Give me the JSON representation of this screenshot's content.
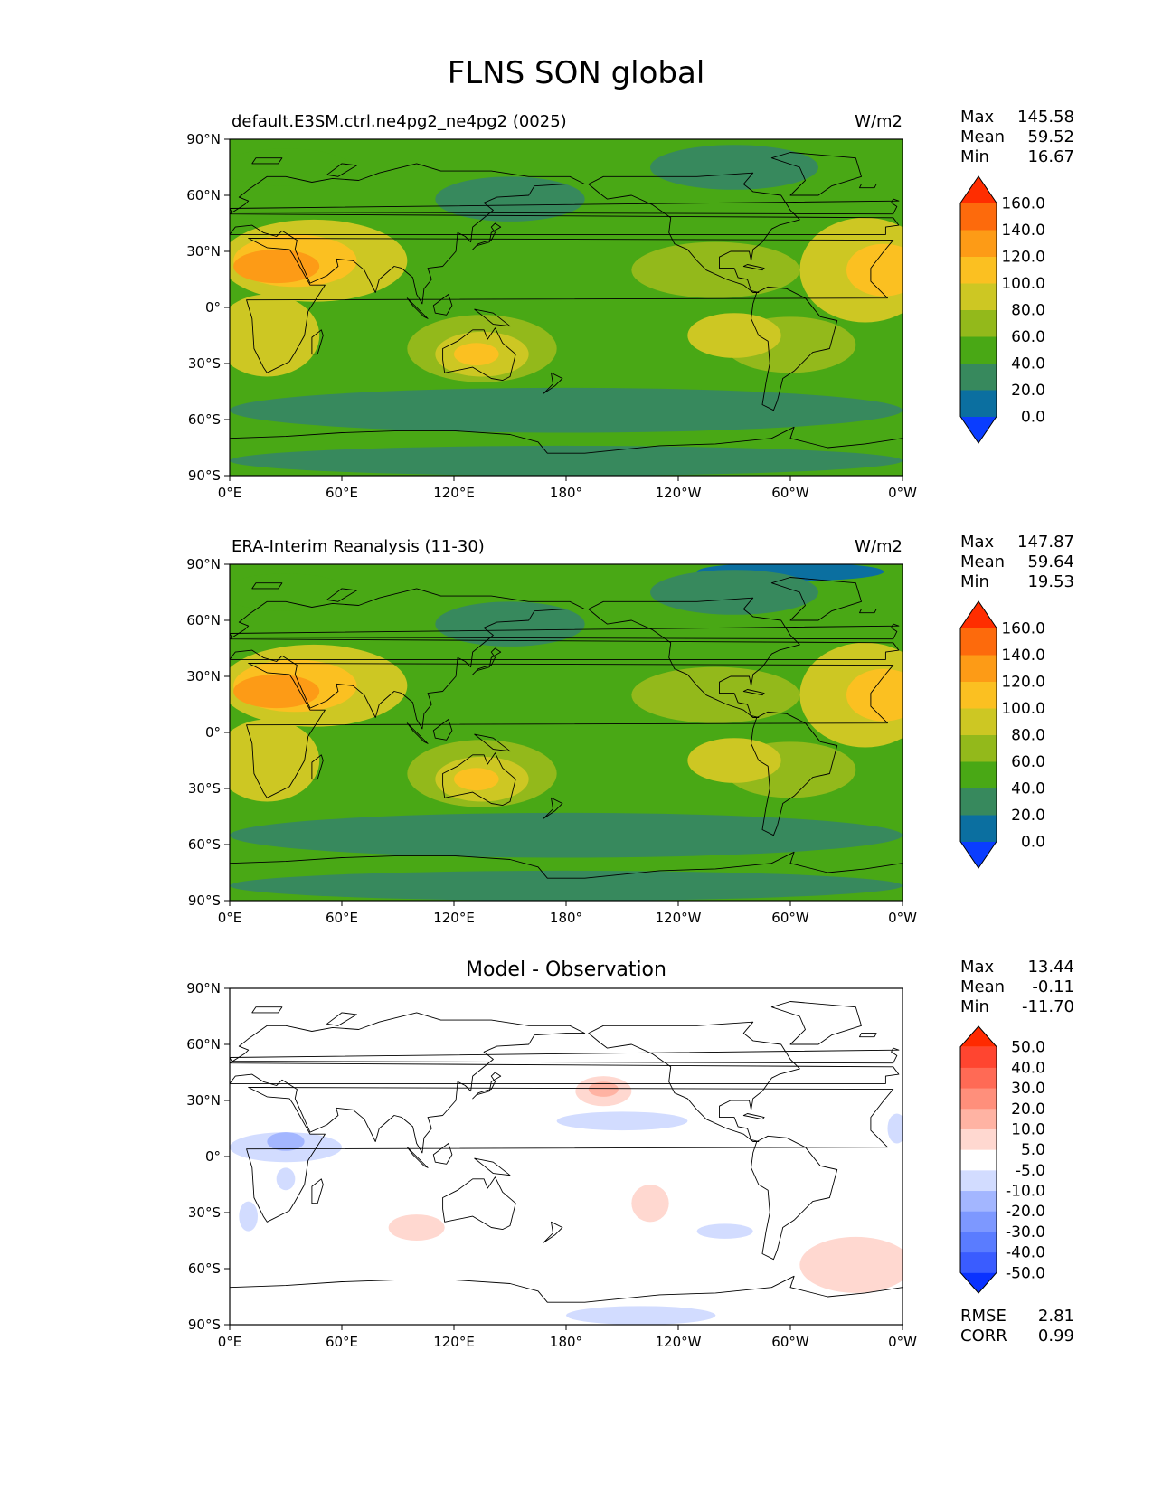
{
  "title": "FLNS SON global",
  "panels": [
    {
      "left_title": "default.E3SM.ctrl.ne4pg2_ne4pg2 (0025)",
      "center_title": "",
      "units": "W/m2",
      "stats": [
        {
          "label": "Max",
          "value": "145.58"
        },
        {
          "label": "Mean",
          "value": "59.52"
        },
        {
          "label": "Min",
          "value": "16.67"
        }
      ]
    },
    {
      "left_title": "ERA-Interim Reanalysis (11-30)",
      "center_title": "",
      "units": "W/m2",
      "stats": [
        {
          "label": "Max",
          "value": "147.87"
        },
        {
          "label": "Mean",
          "value": "59.64"
        },
        {
          "label": "Min",
          "value": "19.53"
        }
      ]
    },
    {
      "left_title": "",
      "center_title": "Model - Observation",
      "units": "",
      "stats": [
        {
          "label": "Max",
          "value": "13.44"
        },
        {
          "label": "Mean",
          "value": "-0.11"
        },
        {
          "label": "Min",
          "value": "-11.70"
        }
      ],
      "extra_stats": [
        {
          "label": "RMSE",
          "value": "2.81"
        },
        {
          "label": "CORR",
          "value": "0.99"
        }
      ]
    }
  ],
  "chart_data": [
    {
      "type": "heatmap",
      "projection": "cylindrical",
      "x_ticks": [
        "0°E",
        "60°E",
        "120°E",
        "180°",
        "120°W",
        "60°W",
        "0°W"
      ],
      "y_ticks": [
        "90°N",
        "60°N",
        "30°N",
        "0°",
        "30°S",
        "60°S",
        "90°S"
      ],
      "xlim": [
        0,
        360
      ],
      "ylim": [
        -90,
        90
      ],
      "colorbar": {
        "levels": [
          "0.0",
          "20.0",
          "40.0",
          "60.0",
          "80.0",
          "100.0",
          "120.0",
          "140.0",
          "160.0"
        ],
        "colors": [
          "#0a3dff",
          "#0b6fa0",
          "#37895d",
          "#49a815",
          "#93b91b",
          "#cdc723",
          "#fbc021",
          "#fd9b16",
          "#fd6a0c",
          "#ff2d00"
        ],
        "extend": "both"
      },
      "field": {
        "background_band": 50,
        "regions": [
          {
            "lon": 30,
            "lat": 75,
            "rx": 35,
            "ry": 10,
            "value": 50
          },
          {
            "lon": 150,
            "lat": 58,
            "rx": 40,
            "ry": 12,
            "value": 30
          },
          {
            "lon": 270,
            "lat": 75,
            "rx": 45,
            "ry": 12,
            "value": 30
          },
          {
            "lon": 45,
            "lat": 25,
            "rx": 50,
            "ry": 22,
            "value": 90
          },
          {
            "lon": 35,
            "lat": 25,
            "rx": 33,
            "ry": 14,
            "value": 110
          },
          {
            "lon": 25,
            "lat": 22,
            "rx": 23,
            "ry": 9,
            "value": 130
          },
          {
            "lon": 20,
            "lat": -15,
            "rx": 28,
            "ry": 22,
            "value": 90
          },
          {
            "lon": 135,
            "lat": -22,
            "rx": 40,
            "ry": 18,
            "value": 70
          },
          {
            "lon": 135,
            "lat": -25,
            "rx": 25,
            "ry": 12,
            "value": 90
          },
          {
            "lon": 132,
            "lat": -25,
            "rx": 12,
            "ry": 6,
            "value": 110
          },
          {
            "lon": 260,
            "lat": 20,
            "rx": 45,
            "ry": 15,
            "value": 70
          },
          {
            "lon": 340,
            "lat": 20,
            "rx": 35,
            "ry": 28,
            "value": 90
          },
          {
            "lon": 350,
            "lat": 20,
            "rx": 20,
            "ry": 14,
            "value": 110
          },
          {
            "lon": 300,
            "lat": -20,
            "rx": 35,
            "ry": 15,
            "value": 70
          },
          {
            "lon": 270,
            "lat": -15,
            "rx": 25,
            "ry": 12,
            "value": 90
          },
          {
            "lon": 180,
            "lat": -55,
            "rx": 180,
            "ry": 12,
            "value": 30
          },
          {
            "lon": 180,
            "lat": -82,
            "rx": 180,
            "ry": 8,
            "value": 30
          }
        ]
      }
    },
    {
      "type": "heatmap",
      "projection": "cylindrical",
      "x_ticks": [
        "0°E",
        "60°E",
        "120°E",
        "180°",
        "120°W",
        "60°W",
        "0°W"
      ],
      "y_ticks": [
        "90°N",
        "60°N",
        "30°N",
        "0°",
        "30°S",
        "60°S",
        "90°S"
      ],
      "xlim": [
        0,
        360
      ],
      "ylim": [
        -90,
        90
      ],
      "colorbar": {
        "levels": [
          "0.0",
          "20.0",
          "40.0",
          "60.0",
          "80.0",
          "100.0",
          "120.0",
          "140.0",
          "160.0"
        ],
        "colors": [
          "#0a3dff",
          "#0b6fa0",
          "#37895d",
          "#49a815",
          "#93b91b",
          "#cdc723",
          "#fbc021",
          "#fd9b16",
          "#fd6a0c",
          "#ff2d00"
        ],
        "extend": "both"
      },
      "field": {
        "background_band": 50,
        "regions": [
          {
            "lon": 300,
            "lat": 86,
            "rx": 50,
            "ry": 5,
            "value": 10
          },
          {
            "lon": 30,
            "lat": 75,
            "rx": 35,
            "ry": 10,
            "value": 50
          },
          {
            "lon": 150,
            "lat": 58,
            "rx": 40,
            "ry": 12,
            "value": 30
          },
          {
            "lon": 270,
            "lat": 75,
            "rx": 45,
            "ry": 12,
            "value": 30
          },
          {
            "lon": 45,
            "lat": 25,
            "rx": 50,
            "ry": 22,
            "value": 90
          },
          {
            "lon": 35,
            "lat": 25,
            "rx": 33,
            "ry": 14,
            "value": 110
          },
          {
            "lon": 25,
            "lat": 22,
            "rx": 23,
            "ry": 9,
            "value": 130
          },
          {
            "lon": 20,
            "lat": -15,
            "rx": 28,
            "ry": 22,
            "value": 90
          },
          {
            "lon": 135,
            "lat": -22,
            "rx": 40,
            "ry": 18,
            "value": 70
          },
          {
            "lon": 135,
            "lat": -25,
            "rx": 25,
            "ry": 12,
            "value": 90
          },
          {
            "lon": 132,
            "lat": -25,
            "rx": 12,
            "ry": 6,
            "value": 110
          },
          {
            "lon": 260,
            "lat": 20,
            "rx": 45,
            "ry": 15,
            "value": 70
          },
          {
            "lon": 340,
            "lat": 20,
            "rx": 35,
            "ry": 28,
            "value": 90
          },
          {
            "lon": 350,
            "lat": 20,
            "rx": 20,
            "ry": 14,
            "value": 110
          },
          {
            "lon": 300,
            "lat": -20,
            "rx": 35,
            "ry": 15,
            "value": 70
          },
          {
            "lon": 270,
            "lat": -15,
            "rx": 25,
            "ry": 12,
            "value": 90
          },
          {
            "lon": 180,
            "lat": -55,
            "rx": 180,
            "ry": 12,
            "value": 30
          },
          {
            "lon": 180,
            "lat": -82,
            "rx": 180,
            "ry": 8,
            "value": 30
          }
        ]
      }
    },
    {
      "type": "heatmap",
      "projection": "cylindrical",
      "x_ticks": [
        "0°E",
        "60°E",
        "120°E",
        "180°",
        "120°W",
        "60°W",
        "0°W"
      ],
      "y_ticks": [
        "90°N",
        "60°N",
        "30°N",
        "0°",
        "30°S",
        "60°S",
        "90°S"
      ],
      "xlim": [
        0,
        360
      ],
      "ylim": [
        -90,
        90
      ],
      "colorbar": {
        "levels": [
          "-50.0",
          "-40.0",
          "-30.0",
          "-20.0",
          "-10.0",
          "-5.0",
          "5.0",
          "10.0",
          "20.0",
          "30.0",
          "40.0",
          "50.0"
        ],
        "colors": [
          "#0a32ff",
          "#3a5cff",
          "#5a7cff",
          "#7d98ff",
          "#a3b6ff",
          "#d2dcff",
          "#ffffff",
          "#ffd8d0",
          "#ffb3a3",
          "#ff8f7b",
          "#ff6a55",
          "#ff4530",
          "#ff2a00"
        ],
        "extend": "both"
      },
      "field": {
        "background_band": 0,
        "regions": [
          {
            "lon": 30,
            "lat": 5,
            "rx": 30,
            "ry": 8,
            "value": -7
          },
          {
            "lon": 30,
            "lat": 8,
            "rx": 10,
            "ry": 5,
            "value": -12
          },
          {
            "lon": 30,
            "lat": -12,
            "rx": 5,
            "ry": 6,
            "value": -7
          },
          {
            "lon": 10,
            "lat": -32,
            "rx": 5,
            "ry": 8,
            "value": -7
          },
          {
            "lon": 200,
            "lat": 35,
            "rx": 15,
            "ry": 8,
            "value": 7
          },
          {
            "lon": 200,
            "lat": 36,
            "rx": 8,
            "ry": 4,
            "value": 12
          },
          {
            "lon": 210,
            "lat": 19,
            "rx": 35,
            "ry": 5,
            "value": -7
          },
          {
            "lon": 357,
            "lat": 15,
            "rx": 5,
            "ry": 8,
            "value": -7
          },
          {
            "lon": 225,
            "lat": -25,
            "rx": 10,
            "ry": 10,
            "value": 7
          },
          {
            "lon": 100,
            "lat": -38,
            "rx": 15,
            "ry": 7,
            "value": 7
          },
          {
            "lon": 265,
            "lat": -40,
            "rx": 15,
            "ry": 4,
            "value": -7
          },
          {
            "lon": 335,
            "lat": -58,
            "rx": 30,
            "ry": 15,
            "value": 7
          },
          {
            "lon": 220,
            "lat": -85,
            "rx": 40,
            "ry": 5,
            "value": -7
          }
        ]
      }
    }
  ]
}
